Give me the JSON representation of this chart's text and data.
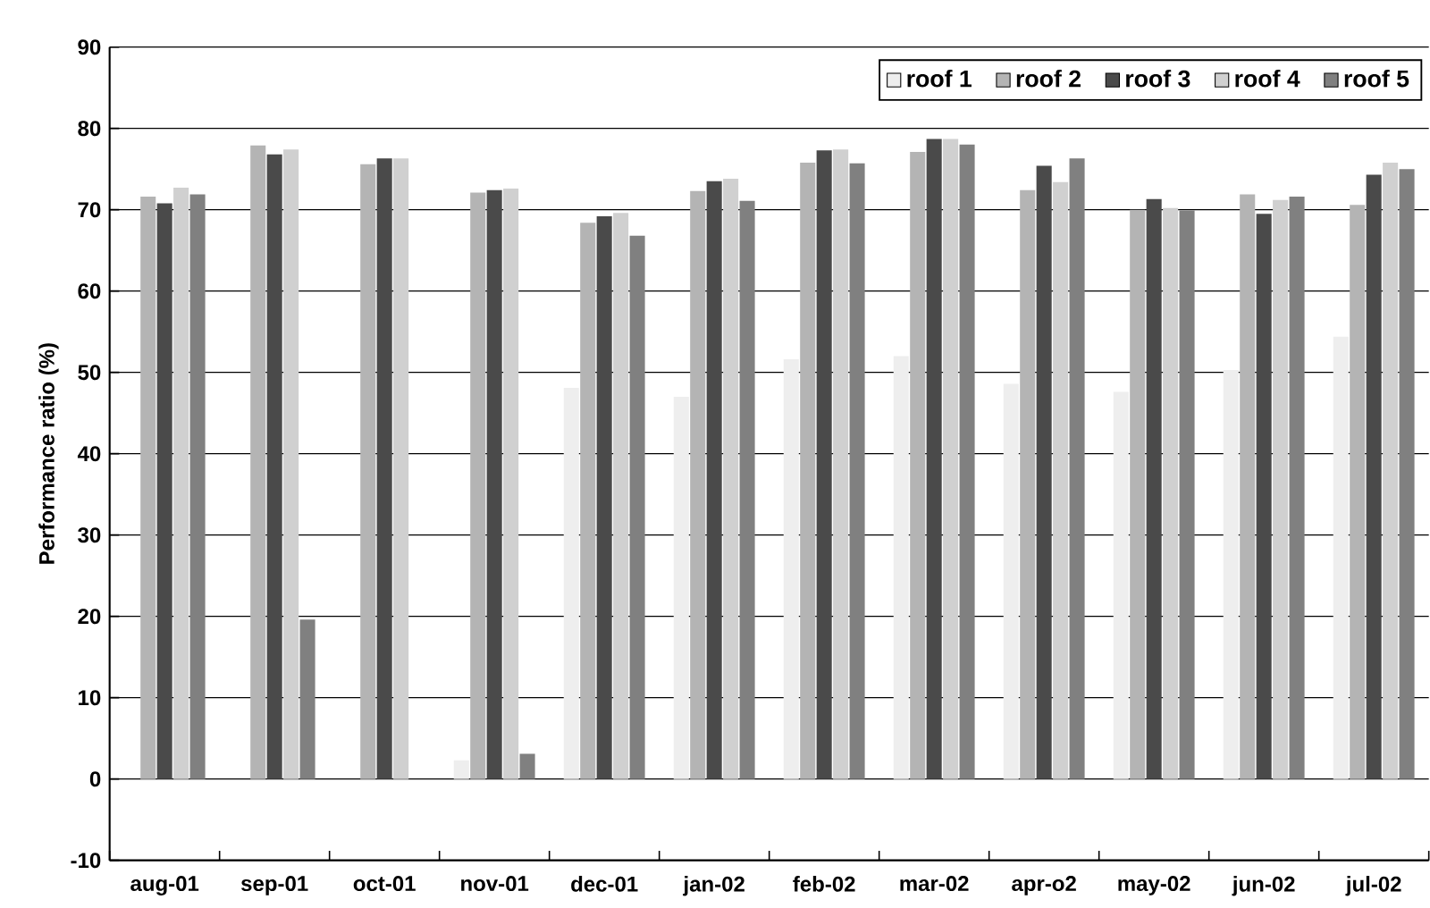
{
  "chart_data": {
    "type": "bar",
    "ylabel": "Performance ratio (%)",
    "categories": [
      "aug-01",
      "sep-01",
      "oct-01",
      "nov-01",
      "dec-01",
      "jan-02",
      "feb-02",
      "mar-02",
      "apr-o2",
      "may-02",
      "jun-02",
      "jul-02"
    ],
    "series": [
      {
        "name": "roof 1",
        "color": "#eeeeee",
        "values": [
          0,
          0,
          0,
          2.3,
          48.1,
          47.0,
          51.6,
          52.0,
          48.6,
          47.6,
          50.3,
          54.4
        ]
      },
      {
        "name": "roof 2",
        "color": "#b4b4b4",
        "values": [
          71.6,
          77.9,
          75.6,
          72.1,
          68.4,
          72.3,
          75.8,
          77.1,
          72.4,
          70.0,
          71.9,
          70.6
        ]
      },
      {
        "name": "roof 3",
        "color": "#4a4a4a",
        "values": [
          70.8,
          76.8,
          76.3,
          72.4,
          69.2,
          73.5,
          77.3,
          78.7,
          75.4,
          71.3,
          69.5,
          74.3
        ]
      },
      {
        "name": "roof 4",
        "color": "#d0d0d0",
        "values": [
          72.7,
          77.4,
          76.3,
          72.6,
          69.6,
          73.8,
          77.4,
          78.7,
          73.4,
          70.2,
          71.2,
          75.8
        ]
      },
      {
        "name": "roof 5",
        "color": "#808080",
        "values": [
          71.9,
          19.6,
          0,
          3.1,
          66.8,
          71.1,
          75.7,
          78.0,
          76.3,
          69.9,
          71.6,
          75.0
        ]
      }
    ],
    "ylim": [
      -10,
      90
    ],
    "yticks": [
      -10,
      0,
      10,
      20,
      30,
      40,
      50,
      60,
      70,
      80,
      90
    ],
    "grid": "y",
    "legend": "top right"
  }
}
